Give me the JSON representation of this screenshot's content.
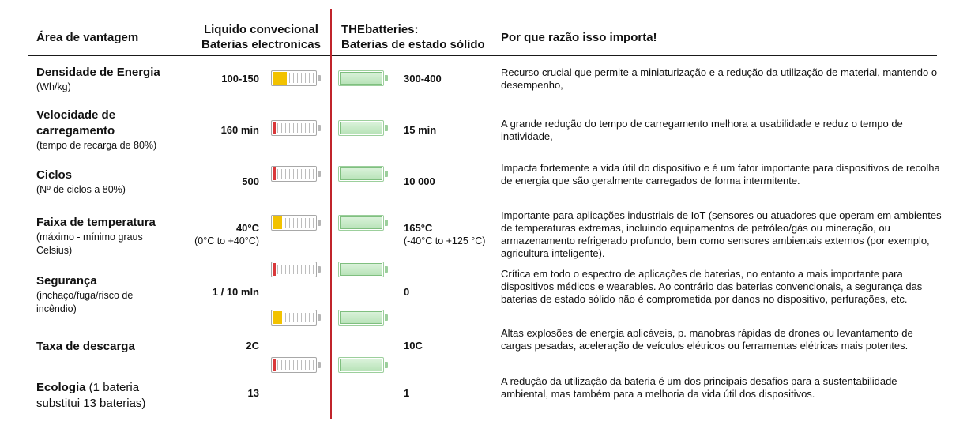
{
  "header": {
    "col_area": "Área de vantagem",
    "col_liquid_line1": "Liquido convecional",
    "col_liquid_line2": "Baterias electronicas",
    "col_thebatteries_line1": "THEbatteries:",
    "col_thebatteries_line2": "Baterias de estado sólido",
    "col_why": "Por que razão isso importa!"
  },
  "colors": {
    "divider": "#c0242b",
    "yellow_fill": "#f2c200",
    "red_fill": "#d9383a",
    "green_fill": "#b9e3b9"
  },
  "rows": [
    {
      "title": "Densidade de Energia",
      "subtitle": "(Wh/kg)",
      "liquid_value": "100-150",
      "solid_value": "300-400",
      "liquid_level": "yellow",
      "why": "Recurso crucial que permite a miniaturização e a redução da utilização de material, mantendo o desempenho,"
    },
    {
      "title_line1": "Velocidade de",
      "title_line2": "carregamento",
      "subtitle": "(tempo de recarga de 80%)",
      "liquid_value": "160 min",
      "solid_value": "15 min",
      "liquid_level": "red",
      "why": "A grande redução do tempo de carregamento melhora a usabilidade e reduz o tempo de inatividade,"
    },
    {
      "title": "Ciclos",
      "subtitle": "(Nº de ciclos a 80%)",
      "liquid_value": "500",
      "solid_value": "10 000",
      "liquid_level": "red",
      "why": "Impacta fortemente a vida útil do dispositivo e é um fator importante para dispositivos de recolha de energia que são geralmente carregados de forma intermitente."
    },
    {
      "title": "Faixa de temperatura",
      "subtitle_line1": "(máximo - mínimo graus",
      "subtitle_line2": "Celsius)",
      "liquid_value": "40°C",
      "liquid_value_sub": "(0°C to +40°C)",
      "solid_value": "165°C",
      "solid_value_sub": "(-40°C to +125 °C)",
      "liquid_level": "yellow",
      "why": "Importante para aplicações industriais de IoT (sensores ou atuadores que operam em ambientes de temperaturas extremas, incluindo equipamentos de petróleo/gás ou mineração, ou armazenamento refrigerado profundo, bem como sensores ambientais externos (por exemplo, agricultura inteligente)."
    },
    {
      "title": "Segurança",
      "subtitle_line1": "(inchaço/fuga/risco de",
      "subtitle_line2": "incêndio)",
      "liquid_value": "1 / 10 mln",
      "solid_value": "0",
      "liquid_level": "red",
      "why": "Crítica em todo o espectro de aplicações de baterias, no entanto a mais importante para dispositivos médicos e wearables. Ao contrário das baterias convencionais, a segurança das baterias de estado sólido não é comprometida por danos no dispositivo, perfurações, etc."
    },
    {
      "title": "Taxa de descarga",
      "liquid_value": "2C",
      "solid_value": "10C",
      "liquid_level": "yellow",
      "why": "Altas explosões de energia aplicáveis, p. manobras rápidas de drones ou levantamento de cargas pesadas, aceleração de veículos elétricos ou ferramentas elétricas mais potentes."
    },
    {
      "title_bold": "Ecologia",
      "title_rest": " (1 bateria",
      "title_line2": "substitui 13 baterias)",
      "liquid_value": "13",
      "solid_value": "1",
      "liquid_level": "red",
      "why": "A redução da utilização da bateria é um dos principais desafios para a sustentabilidade ambiental, mas também para a melhoria da vida útil dos dispositivos."
    }
  ]
}
